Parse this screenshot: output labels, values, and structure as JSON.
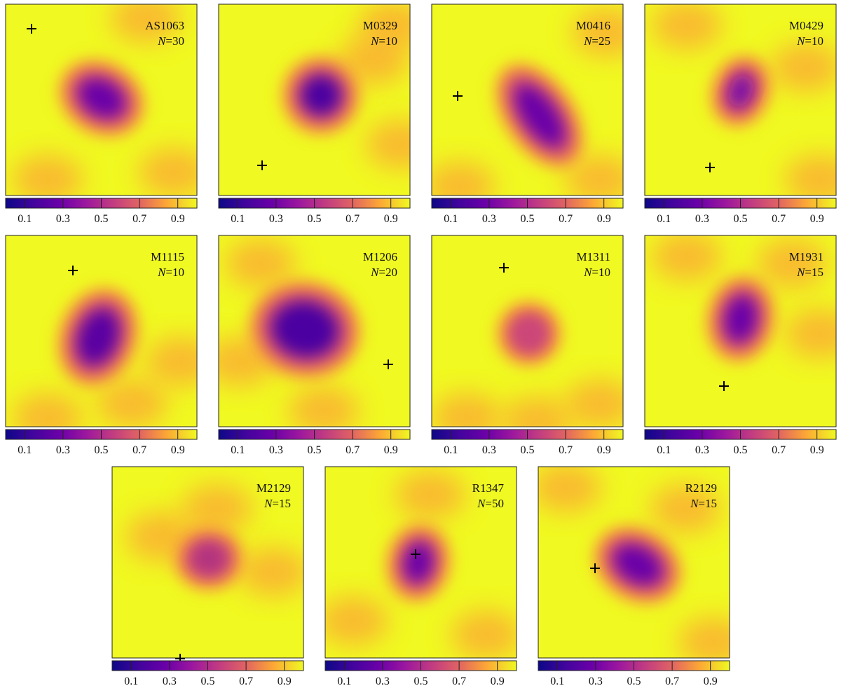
{
  "colorbar": {
    "lim": [
      0,
      1
    ],
    "ticks": [
      0.1,
      0.3,
      0.5,
      0.7,
      0.9
    ]
  },
  "panels": [
    {
      "name": "AS1063",
      "n_label": "N=30"
    },
    {
      "name": "M0329",
      "n_label": "N=10"
    },
    {
      "name": "M0416",
      "n_label": "N=25"
    },
    {
      "name": "M0429",
      "n_label": "N=10"
    },
    {
      "name": "M1115",
      "n_label": "N=10"
    },
    {
      "name": "M1206",
      "n_label": "N=20"
    },
    {
      "name": "M1311",
      "n_label": "N=10"
    },
    {
      "name": "M1931",
      "n_label": "N=15"
    },
    {
      "name": "M2129",
      "n_label": "N=15"
    },
    {
      "name": "R1347",
      "n_label": "N=50"
    },
    {
      "name": "R2129",
      "n_label": "N=15"
    }
  ]
}
